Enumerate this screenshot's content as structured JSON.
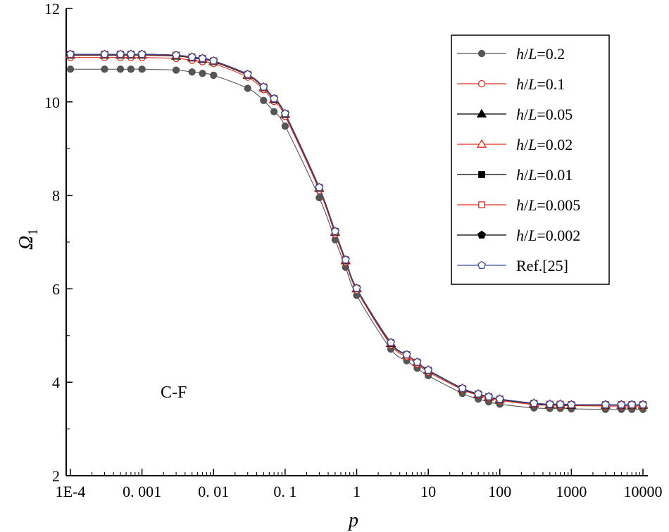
{
  "chart_data": {
    "type": "line",
    "title": "",
    "xlabel": "p",
    "ylabel": "Ω",
    "ylabel_subscript": "1",
    "xscale": "log",
    "xlim": [
      0.0001,
      10000
    ],
    "ylim": [
      2,
      12
    ],
    "x_ticks": [
      {
        "value": 0.0001,
        "label": "1E-4"
      },
      {
        "value": 0.001,
        "label": "0. 001"
      },
      {
        "value": 0.01,
        "label": "0. 01"
      },
      {
        "value": 0.1,
        "label": "0. 1"
      },
      {
        "value": 1,
        "label": "1"
      },
      {
        "value": 10,
        "label": "10"
      },
      {
        "value": 100,
        "label": "100"
      },
      {
        "value": 1000,
        "label": "1000"
      },
      {
        "value": 10000,
        "label": "10000"
      }
    ],
    "y_ticks": [
      2,
      4,
      6,
      8,
      10,
      12
    ],
    "annotation": "C-F",
    "legend_position": "top-right",
    "x": [
      0.0001,
      0.0003,
      0.0005,
      0.0007,
      0.001,
      0.003,
      0.005,
      0.007,
      0.01,
      0.03,
      0.05,
      0.07,
      0.1,
      0.3,
      0.5,
      0.7,
      1,
      3,
      5,
      7,
      10,
      30,
      50,
      70,
      100,
      300,
      500,
      700,
      1000,
      3000,
      5000,
      7000,
      10000
    ],
    "series": [
      {
        "name": "h/L=0.2",
        "label_prefix": "h",
        "label_var": "L",
        "label_value": "=0.2",
        "color": "#555555",
        "line_color": "#555555",
        "marker": "filled-circle",
        "values": [
          10.7,
          10.7,
          10.7,
          10.7,
          10.7,
          10.68,
          10.64,
          10.61,
          10.57,
          10.29,
          10.03,
          9.79,
          9.48,
          7.95,
          7.05,
          6.46,
          5.86,
          4.71,
          4.46,
          4.3,
          4.14,
          3.76,
          3.64,
          3.58,
          3.53,
          3.45,
          3.44,
          3.44,
          3.43,
          3.42,
          3.42,
          3.42,
          3.42
        ]
      },
      {
        "name": "h/L=0.1",
        "label_prefix": "h",
        "label_var": "L",
        "label_value": "=0.1",
        "color": "#e03020",
        "line_color": "#e03020",
        "marker": "open-circle",
        "values": [
          10.95,
          10.95,
          10.95,
          10.95,
          10.95,
          10.93,
          10.89,
          10.86,
          10.82,
          10.53,
          10.26,
          10.01,
          9.69,
          8.11,
          7.17,
          6.57,
          5.97,
          4.8,
          4.55,
          4.39,
          4.22,
          3.84,
          3.72,
          3.66,
          3.61,
          3.52,
          3.51,
          3.5,
          3.5,
          3.49,
          3.49,
          3.49,
          3.49
        ]
      },
      {
        "name": "h/L=0.05",
        "label_prefix": "h",
        "label_var": "L",
        "label_value": "=0.05",
        "color": "#000000",
        "line_color": "#000000",
        "marker": "filled-triangle",
        "values": [
          11.0,
          11.0,
          11.0,
          11.0,
          11.0,
          10.98,
          10.94,
          10.91,
          10.86,
          10.57,
          10.3,
          10.05,
          9.73,
          8.15,
          7.21,
          6.6,
          6.0,
          4.83,
          4.58,
          4.42,
          4.25,
          3.86,
          3.74,
          3.68,
          3.63,
          3.54,
          3.52,
          3.52,
          3.51,
          3.51,
          3.51,
          3.51,
          3.51
        ]
      },
      {
        "name": "h/L=0.02",
        "label_prefix": "h",
        "label_var": "L",
        "label_value": "=0.02",
        "color": "#e03020",
        "line_color": "#e03020",
        "marker": "open-triangle",
        "values": [
          11.01,
          11.01,
          11.01,
          11.01,
          11.01,
          10.99,
          10.95,
          10.92,
          10.87,
          10.58,
          10.31,
          10.06,
          9.74,
          8.16,
          7.22,
          6.61,
          6.01,
          4.84,
          4.58,
          4.42,
          4.26,
          3.87,
          3.75,
          3.69,
          3.64,
          3.55,
          3.53,
          3.53,
          3.52,
          3.52,
          3.52,
          3.52,
          3.52
        ]
      },
      {
        "name": "h/L=0.01",
        "label_prefix": "h",
        "label_var": "L",
        "label_value": "=0.01",
        "color": "#000000",
        "line_color": "#000000",
        "marker": "filled-square",
        "values": [
          11.02,
          11.02,
          11.02,
          11.02,
          11.02,
          11.0,
          10.96,
          10.93,
          10.88,
          10.59,
          10.32,
          10.07,
          9.75,
          8.17,
          7.23,
          6.62,
          6.01,
          4.85,
          4.59,
          4.43,
          4.26,
          3.87,
          3.75,
          3.69,
          3.64,
          3.55,
          3.53,
          3.53,
          3.52,
          3.52,
          3.52,
          3.52,
          3.52
        ]
      },
      {
        "name": "h/L=0.005",
        "label_prefix": "h",
        "label_var": "L",
        "label_value": "=0.005",
        "color": "#e03020",
        "line_color": "#e03020",
        "marker": "open-square",
        "values": [
          11.02,
          11.02,
          11.02,
          11.02,
          11.02,
          11.0,
          10.96,
          10.93,
          10.88,
          10.59,
          10.32,
          10.07,
          9.75,
          8.17,
          7.23,
          6.62,
          6.01,
          4.85,
          4.59,
          4.43,
          4.26,
          3.87,
          3.75,
          3.69,
          3.64,
          3.55,
          3.53,
          3.53,
          3.52,
          3.52,
          3.52,
          3.52,
          3.52
        ]
      },
      {
        "name": "h/L=0.002",
        "label_prefix": "h",
        "label_var": "L",
        "label_value": "=0.002",
        "color": "#000000",
        "line_color": "#000000",
        "marker": "filled-pentagon",
        "values": [
          11.02,
          11.02,
          11.02,
          11.02,
          11.02,
          11.0,
          10.96,
          10.93,
          10.88,
          10.59,
          10.32,
          10.07,
          9.75,
          8.17,
          7.23,
          6.62,
          6.01,
          4.85,
          4.59,
          4.43,
          4.26,
          3.87,
          3.75,
          3.69,
          3.64,
          3.55,
          3.53,
          3.53,
          3.52,
          3.52,
          3.52,
          3.52,
          3.52
        ]
      },
      {
        "name": "Ref.[25]",
        "label_prefix": "",
        "label_var": "",
        "label_value": "Ref.[25]",
        "color": "#3a4fa0",
        "line_color": "#3a4fa0",
        "marker": "open-pentagon",
        "values": [
          11.02,
          11.02,
          11.02,
          11.02,
          11.02,
          11.0,
          10.96,
          10.93,
          10.88,
          10.59,
          10.32,
          10.07,
          9.75,
          8.17,
          7.23,
          6.62,
          6.01,
          4.85,
          4.59,
          4.43,
          4.26,
          3.87,
          3.75,
          3.69,
          3.64,
          3.55,
          3.53,
          3.53,
          3.52,
          3.52,
          3.52,
          3.52,
          3.52
        ]
      }
    ]
  }
}
